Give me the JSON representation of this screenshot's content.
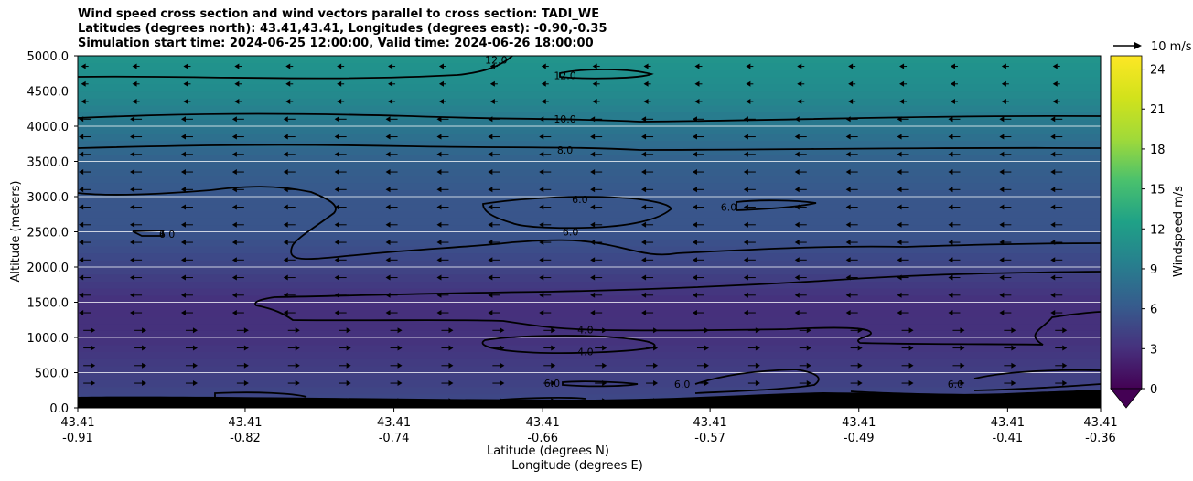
{
  "title_lines": [
    "Wind speed cross section and wind vectors parallel to cross section: TADI_WE",
    "Latitudes (degrees north): 43.41,43.41, Longitudes (degrees east): -0.90,-0.35",
    "Simulation start time: 2024-06-25 12:00:00, Valid time: 2024-06-26 18:00:00"
  ],
  "chart_data": {
    "type": "heatmap",
    "ylabel": "Altitude (meters)",
    "xlabel_lines": [
      "Latitude (degrees N)",
      "Longitude (degrees E)"
    ],
    "ylim": [
      0,
      5000
    ],
    "yticks": [
      "0.0",
      "500.0",
      "1000.0",
      "1500.0",
      "2000.0",
      "2500.0",
      "3000.0",
      "3500.0",
      "4000.0",
      "4500.0",
      "5000.0"
    ],
    "ytick_values": [
      0,
      500,
      1000,
      1500,
      2000,
      2500,
      3000,
      3500,
      4000,
      4500,
      5000
    ],
    "xlim": [
      -0.91,
      -0.36
    ],
    "xticks": [
      {
        "lon": -0.91,
        "lat_label": "43.41",
        "lon_label": "-0.91"
      },
      {
        "lon": -0.82,
        "lat_label": "43.41",
        "lon_label": "-0.82"
      },
      {
        "lon": -0.74,
        "lat_label": "43.41",
        "lon_label": "-0.74"
      },
      {
        "lon": -0.66,
        "lat_label": "43.41",
        "lon_label": "-0.66"
      },
      {
        "lon": -0.57,
        "lat_label": "43.41",
        "lon_label": "-0.57"
      },
      {
        "lon": -0.49,
        "lat_label": "43.41",
        "lon_label": "-0.49"
      },
      {
        "lon": -0.41,
        "lat_label": "43.41",
        "lon_label": "-0.41"
      },
      {
        "lon": -0.36,
        "lat_label": "43.41",
        "lon_label": "-0.36"
      }
    ],
    "grid": "horizontal",
    "colorbar": {
      "label": "Windspeed m/s",
      "min": 0,
      "max": 25,
      "ticks": [
        "0",
        "3",
        "6",
        "9",
        "12",
        "15",
        "18",
        "21",
        "24"
      ],
      "tick_values": [
        0,
        3,
        6,
        9,
        12,
        15,
        18,
        21,
        24
      ],
      "colormap": "viridis",
      "extend": "min"
    },
    "wind_profile": [
      {
        "alt": 0,
        "speed": 5.5
      },
      {
        "alt": 500,
        "speed": 4.5
      },
      {
        "alt": 1000,
        "speed": 3.5
      },
      {
        "alt": 1500,
        "speed": 3.3
      },
      {
        "alt": 2000,
        "speed": 5.0
      },
      {
        "alt": 2500,
        "speed": 6.3
      },
      {
        "alt": 3000,
        "speed": 6.5
      },
      {
        "alt": 3500,
        "speed": 7.5
      },
      {
        "alt": 4000,
        "speed": 9.5
      },
      {
        "alt": 4500,
        "speed": 11.5
      },
      {
        "alt": 5000,
        "speed": 12.5
      }
    ],
    "contour_labels": [
      {
        "text": "12.0",
        "lon": -0.648,
        "alt": 4720
      },
      {
        "text": "12.0",
        "lon": -0.685,
        "alt": 4940
      },
      {
        "text": "10.0",
        "lon": -0.648,
        "alt": 4105
      },
      {
        "text": "8.0",
        "lon": -0.648,
        "alt": 3660
      },
      {
        "text": "6.0",
        "lon": -0.64,
        "alt": 2960
      },
      {
        "text": "6.0",
        "lon": -0.645,
        "alt": 2500
      },
      {
        "text": "6.0",
        "lon": -0.56,
        "alt": 2850
      },
      {
        "text": "6.0",
        "lon": -0.862,
        "alt": 2470
      },
      {
        "text": "4.0",
        "lon": -0.637,
        "alt": 1110
      },
      {
        "text": "4.0",
        "lon": -0.637,
        "alt": 800
      },
      {
        "text": "6.0",
        "lon": -0.655,
        "alt": 350
      },
      {
        "text": "6.0",
        "lon": -0.585,
        "alt": 340
      },
      {
        "text": "6.0",
        "lon": -0.438,
        "alt": 340
      }
    ],
    "wind_vectors": {
      "reference_label": "10 m/s",
      "reference_speed": 10
    }
  },
  "colors": {
    "terrain": "#000000",
    "contour": "#000000",
    "grid": "#ffffff"
  }
}
